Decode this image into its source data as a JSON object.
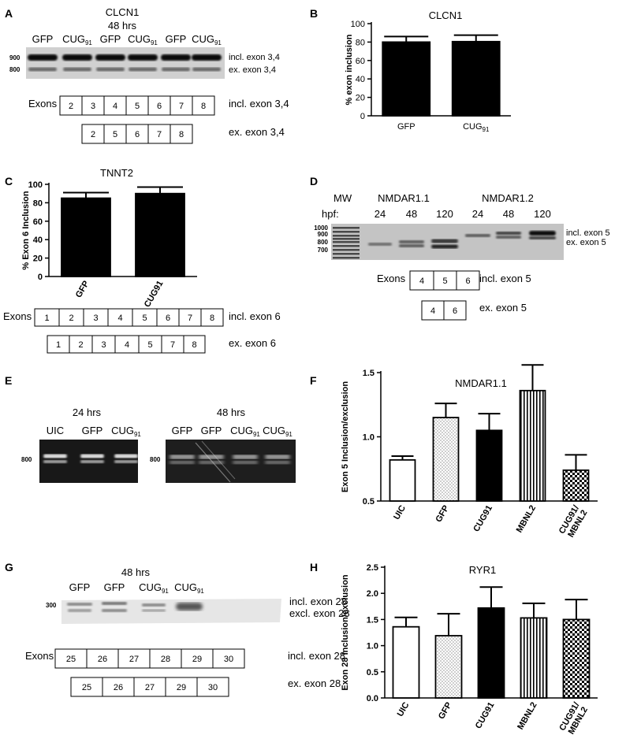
{
  "panels": {
    "A": {
      "letter": "A",
      "title": "CLCN1",
      "time": "48 hrs",
      "lanes": [
        "GFP",
        "CUG91",
        "GFP",
        "CUG91",
        "GFP",
        "CUG91"
      ],
      "markers": [
        "900",
        "800"
      ],
      "band_labels": [
        "incl. exon 3,4",
        "ex. exon 3,4"
      ],
      "exons_label": "Exons",
      "incl_exons": [
        "2",
        "3",
        "4",
        "5",
        "6",
        "7",
        "8"
      ],
      "ex_exons": [
        "2",
        "5",
        "6",
        "7",
        "8"
      ],
      "incl_label": "incl. exon 3,4",
      "ex_label": "ex. exon 3,4"
    },
    "C": {
      "letter": "C",
      "exons_label": "Exons",
      "incl_exons": [
        "1",
        "2",
        "3",
        "4",
        "5",
        "6",
        "7",
        "8"
      ],
      "ex_exons": [
        "1",
        "2",
        "3",
        "4",
        "5",
        "7",
        "8"
      ],
      "incl_label": "incl. exon 6",
      "ex_label": "ex. exon 6"
    },
    "D": {
      "letter": "D",
      "mw_label": "MW",
      "group1": "NMDAR1.1",
      "group2": "NMDAR1.2",
      "hpf_label": "hpf:",
      "hpf": [
        "24",
        "48",
        "120",
        "24",
        "48",
        "120"
      ],
      "markers": [
        "1000",
        "900",
        "800",
        "700"
      ],
      "band_labels": [
        "incl. exon 5",
        "ex. exon 5"
      ],
      "exons_label": "Exons",
      "incl_exons": [
        "4",
        "5",
        "6"
      ],
      "ex_exons": [
        "4",
        "6"
      ],
      "incl_label": "incl. exon 5",
      "ex_label": "ex. exon 5"
    },
    "E": {
      "letter": "E",
      "time1": "24 hrs",
      "time2": "48 hrs",
      "lanes1": [
        "UIC",
        "GFP",
        "CUG91"
      ],
      "lanes2": [
        "GFP",
        "GFP",
        "CUG91",
        "CUG91"
      ],
      "marker": "800"
    },
    "G": {
      "letter": "G",
      "time": "48 hrs",
      "lanes": [
        "GFP",
        "GFP",
        "CUG91",
        "CUG91"
      ],
      "marker": "300",
      "band_labels": [
        "incl. exon 28",
        "excl. exon 28"
      ],
      "exons_label": "Exons",
      "incl_exons": [
        "25",
        "26",
        "27",
        "28",
        "29",
        "30"
      ],
      "ex_exons": [
        "25",
        "26",
        "27",
        "29",
        "30"
      ],
      "incl_label": "incl. exon 28",
      "ex_label": "ex. exon 28"
    }
  },
  "chart_data": [
    {
      "panel": "B",
      "type": "bar",
      "title": "CLCN1",
      "ylabel": "% exon inclusion",
      "xlabel": "",
      "categories": [
        "GFP",
        "CUG91"
      ],
      "values": [
        80,
        80.5
      ],
      "errors": [
        6,
        7
      ],
      "patterns": [
        "solid",
        "solid"
      ],
      "ylim": [
        0,
        100
      ],
      "yticks": [
        "0",
        "20",
        "40",
        "60",
        "80",
        "100"
      ]
    },
    {
      "panel": "C",
      "type": "bar",
      "title": "TNNT2",
      "ylabel": "% Exon 6 Inclusion",
      "xlabel": "",
      "categories": [
        "GFP",
        "CUG91"
      ],
      "values": [
        85,
        90
      ],
      "errors": [
        6,
        7
      ],
      "patterns": [
        "solid",
        "solid"
      ],
      "ylim": [
        0,
        100
      ],
      "yticks": [
        "0",
        "20",
        "40",
        "60",
        "80",
        "100"
      ]
    },
    {
      "panel": "F",
      "type": "bar",
      "title": "NMDAR1.1",
      "ylabel": "Exon 5 Inclusion/exclusion",
      "xlabel": "",
      "categories": [
        "UIC",
        "GFP",
        "CUG91",
        "MBNL2",
        "CUG91/ MBNL2"
      ],
      "values": [
        0.82,
        1.15,
        1.05,
        1.36,
        0.74
      ],
      "errors": [
        0.03,
        0.11,
        0.13,
        0.2,
        0.12
      ],
      "patterns": [
        "empty",
        "dots",
        "solid",
        "vlines",
        "checker"
      ],
      "ylim": [
        0.5,
        1.5
      ],
      "axis_top": 1.5,
      "yticks": [
        "0.5",
        "1.0",
        "1.5"
      ],
      "ymin_label": "UIC"
    },
    {
      "panel": "H",
      "type": "bar",
      "title": "RYR1",
      "ylabel": "Exon 28 Inclusion/exclusion",
      "xlabel": "",
      "categories": [
        "UIC",
        "GFP",
        "CUG91",
        "MBNL2",
        "CUG91/ MBNL2"
      ],
      "values": [
        1.36,
        1.19,
        1.72,
        1.53,
        1.5
      ],
      "errors": [
        0.18,
        0.42,
        0.4,
        0.28,
        0.38
      ],
      "patterns": [
        "empty",
        "dots",
        "solid",
        "vlines",
        "checker"
      ],
      "ylim": [
        0,
        2.5
      ],
      "yticks": [
        "0.0",
        "0.5",
        "1.0",
        "1.5",
        "2.0",
        "2.5"
      ]
    }
  ]
}
